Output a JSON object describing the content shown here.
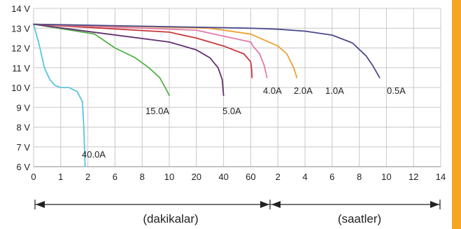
{
  "chart_data": {
    "type": "line",
    "title": "",
    "xlabel": "",
    "ylabel": "",
    "ylim": [
      6,
      14
    ],
    "grid": true,
    "y_ticks": [
      "14 V",
      "13 V",
      "12 V",
      "11 V",
      "10 V",
      "9 V",
      "8 V",
      "7 V",
      "6 V"
    ],
    "x_ticks": [
      "0",
      "1",
      "2",
      "6",
      "8",
      "10",
      "20",
      "40",
      "60",
      "2",
      "4",
      "6",
      "8",
      "10",
      "12",
      "14"
    ],
    "x_segments": [
      {
        "name": "(dakikalar)",
        "ticks": [
          "0",
          "1",
          "2",
          "6",
          "8",
          "10",
          "20",
          "40",
          "60"
        ]
      },
      {
        "name": "(saatler)",
        "ticks": [
          "0",
          "2",
          "4",
          "6",
          "8",
          "10",
          "12",
          "14"
        ]
      }
    ],
    "series": [
      {
        "name": "40.0A",
        "color": "#5bc4de",
        "points": [
          [
            0,
            13.2
          ],
          [
            0.2,
            12.2
          ],
          [
            0.4,
            11.0
          ],
          [
            0.6,
            10.4
          ],
          [
            0.8,
            10.1
          ],
          [
            1.0,
            10.0
          ],
          [
            1.3,
            10.0
          ],
          [
            1.6,
            9.8
          ],
          [
            1.8,
            9.3
          ],
          [
            1.85,
            8.0
          ],
          [
            1.9,
            6.0
          ]
        ]
      },
      {
        "name": "15.0A",
        "color": "#55b04a",
        "points": [
          [
            0,
            13.2
          ],
          [
            3,
            12.7
          ],
          [
            6,
            12.0
          ],
          [
            7.5,
            11.5
          ],
          [
            8.5,
            11.0
          ],
          [
            9.3,
            10.5
          ],
          [
            9.7,
            10.0
          ],
          [
            10,
            9.6
          ]
        ]
      },
      {
        "name": "5.0A",
        "color": "#63306e",
        "points": [
          [
            0,
            13.2
          ],
          [
            5,
            12.7
          ],
          [
            10,
            12.3
          ],
          [
            20,
            11.9
          ],
          [
            30,
            11.5
          ],
          [
            36,
            11.0
          ],
          [
            39,
            10.4
          ],
          [
            40,
            9.6
          ]
        ]
      },
      {
        "name": "4.0A",
        "color": "#c8393c",
        "points": [
          [
            0,
            13.2
          ],
          [
            10,
            12.8
          ],
          [
            20,
            12.5
          ],
          [
            40,
            12.1
          ],
          [
            55,
            11.7
          ],
          [
            60,
            11.3
          ],
          [
            64,
            10.9
          ],
          [
            66,
            10.5
          ]
        ]
      },
      {
        "name": "2.0A",
        "color": "#e27aa9",
        "points": [
          [
            0,
            13.2
          ],
          [
            20,
            12.9
          ],
          [
            40,
            12.6
          ],
          [
            60,
            12.3
          ],
          [
            70,
            12.1
          ],
          [
            100,
            11.7
          ],
          [
            120,
            11.1
          ],
          [
            132,
            10.5
          ]
        ]
      },
      {
        "name": "1.0A",
        "color": "#f0a033",
        "points": [
          [
            0,
            13.2
          ],
          [
            30,
            13.0
          ],
          [
            60,
            12.7
          ],
          [
            120,
            12.4
          ],
          [
            180,
            12.1
          ],
          [
            220,
            11.7
          ],
          [
            250,
            11.0
          ],
          [
            264,
            10.5
          ]
        ]
      },
      {
        "name": "0.5A",
        "color": "#4b4a8c",
        "points": [
          [
            0,
            13.2
          ],
          [
            60,
            13.0
          ],
          [
            180,
            12.95
          ],
          [
            300,
            12.85
          ],
          [
            420,
            12.65
          ],
          [
            510,
            12.25
          ],
          [
            570,
            11.6
          ],
          [
            600,
            11.1
          ],
          [
            630,
            10.5
          ]
        ]
      }
    ],
    "annotations": [
      {
        "text": "(dakikalar)"
      },
      {
        "text": "(saatler)"
      }
    ]
  }
}
